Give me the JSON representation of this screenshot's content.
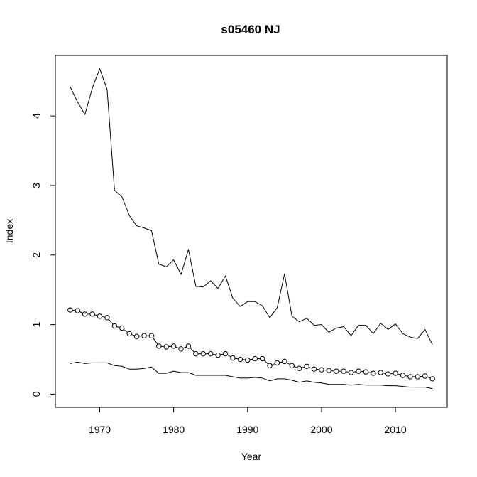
{
  "chart_data": {
    "type": "line",
    "title": "s05460 NJ",
    "xlabel": "Year",
    "ylabel": "Index",
    "xlim": [
      1964,
      2017
    ],
    "ylim": [
      -0.19,
      4.87
    ],
    "x_ticks": [
      1970,
      1980,
      1990,
      2000,
      2010
    ],
    "y_ticks": [
      0,
      1,
      2,
      3,
      4
    ],
    "grid": false,
    "legend": "none",
    "x": [
      1966,
      1967,
      1968,
      1969,
      1970,
      1971,
      1972,
      1973,
      1974,
      1975,
      1976,
      1977,
      1978,
      1979,
      1980,
      1981,
      1982,
      1983,
      1984,
      1985,
      1986,
      1987,
      1988,
      1989,
      1990,
      1991,
      1992,
      1993,
      1994,
      1995,
      1996,
      1997,
      1998,
      1999,
      2000,
      2001,
      2002,
      2003,
      2004,
      2005,
      2006,
      2007,
      2008,
      2009,
      2010,
      2011,
      2012,
      2013,
      2014,
      2015
    ],
    "series": [
      {
        "style": "line",
        "color": "#000000",
        "values": [
          4.42,
          4.2,
          4.02,
          4.4,
          4.68,
          4.38,
          2.93,
          2.84,
          2.57,
          2.42,
          2.39,
          2.35,
          1.87,
          1.83,
          1.93,
          1.72,
          2.08,
          1.55,
          1.54,
          1.63,
          1.52,
          1.7,
          1.38,
          1.26,
          1.33,
          1.33,
          1.27,
          1.1,
          1.24,
          1.73,
          1.12,
          1.04,
          1.09,
          0.99,
          1.0,
          0.89,
          0.95,
          0.97,
          0.84,
          0.99,
          0.99,
          0.87,
          1.02,
          0.93,
          1.01,
          0.87,
          0.82,
          0.8,
          0.93,
          0.71
        ]
      },
      {
        "style": "line-with-circles",
        "color": "#000000",
        "values": [
          1.21,
          1.2,
          1.15,
          1.15,
          1.12,
          1.1,
          0.98,
          0.95,
          0.87,
          0.83,
          0.84,
          0.84,
          0.69,
          0.68,
          0.69,
          0.65,
          0.69,
          0.58,
          0.58,
          0.58,
          0.56,
          0.58,
          0.52,
          0.5,
          0.49,
          0.51,
          0.51,
          0.41,
          0.45,
          0.47,
          0.41,
          0.37,
          0.4,
          0.36,
          0.35,
          0.34,
          0.33,
          0.33,
          0.31,
          0.33,
          0.32,
          0.3,
          0.31,
          0.29,
          0.3,
          0.27,
          0.25,
          0.25,
          0.26,
          0.22
        ]
      },
      {
        "style": "line",
        "color": "#000000",
        "values": [
          0.44,
          0.46,
          0.44,
          0.45,
          0.45,
          0.45,
          0.41,
          0.4,
          0.36,
          0.36,
          0.37,
          0.39,
          0.3,
          0.3,
          0.33,
          0.31,
          0.31,
          0.27,
          0.27,
          0.27,
          0.27,
          0.27,
          0.25,
          0.23,
          0.23,
          0.24,
          0.23,
          0.19,
          0.22,
          0.22,
          0.2,
          0.17,
          0.19,
          0.17,
          0.16,
          0.14,
          0.14,
          0.14,
          0.13,
          0.14,
          0.13,
          0.13,
          0.13,
          0.12,
          0.12,
          0.11,
          0.1,
          0.1,
          0.1,
          0.08
        ]
      }
    ]
  }
}
